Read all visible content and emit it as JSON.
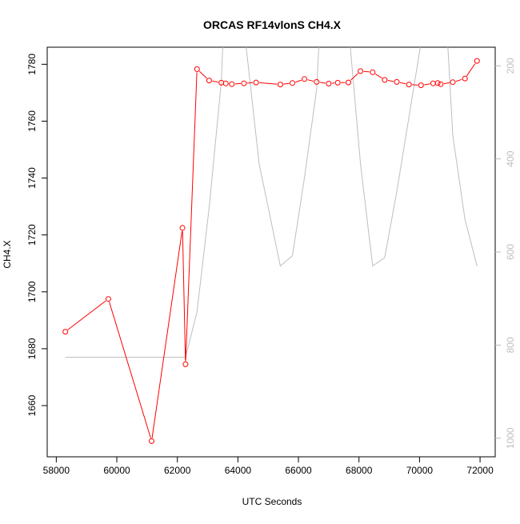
{
  "chart_data": {
    "type": "line",
    "title": "ORCAS RF14vlonS CH4.X",
    "xlabel": "UTC Seconds",
    "ylabel": "CH4.X",
    "xlim": [
      57700,
      72500
    ],
    "ylim": [
      1642,
      1786
    ],
    "y2lim": [
      1040,
      160
    ],
    "y2_reversed": true,
    "x_ticks": [
      58000,
      60000,
      62000,
      64000,
      66000,
      68000,
      70000,
      72000
    ],
    "y_ticks": [
      1660,
      1680,
      1700,
      1720,
      1740,
      1760,
      1780
    ],
    "y2_ticks": [
      200,
      400,
      600,
      800,
      1000
    ],
    "grid": false,
    "legend": "none",
    "series": [
      {
        "color": "#ff0000",
        "axis": "left",
        "points": [
          [
            58300,
            1686.0
          ],
          [
            59720,
            1697.5
          ],
          [
            61150,
            1647.5
          ],
          [
            62170,
            1722.5
          ],
          [
            62270,
            1674.5
          ],
          [
            62650,
            1778.3
          ],
          [
            63050,
            1774.3
          ],
          [
            63450,
            1773.5
          ],
          [
            63600,
            1773.3
          ],
          [
            63800,
            1773.0
          ],
          [
            64200,
            1773.3
          ],
          [
            64600,
            1773.6
          ],
          [
            65400,
            1772.9
          ],
          [
            65800,
            1773.4
          ],
          [
            66200,
            1774.8
          ],
          [
            66600,
            1773.8
          ],
          [
            67000,
            1773.2
          ],
          [
            67300,
            1773.5
          ],
          [
            67650,
            1773.6
          ],
          [
            68050,
            1777.6
          ],
          [
            68450,
            1777.2
          ],
          [
            68850,
            1774.5
          ],
          [
            69250,
            1773.8
          ],
          [
            69650,
            1772.9
          ],
          [
            70050,
            1772.6
          ],
          [
            70450,
            1773.3
          ],
          [
            70600,
            1773.4
          ],
          [
            70700,
            1773.0
          ],
          [
            71100,
            1773.7
          ],
          [
            71500,
            1775.0
          ],
          [
            71900,
            1781.2
          ]
        ]
      },
      {
        "color": "#bebebe",
        "axis": "right",
        "points": [
          [
            58300,
            826
          ],
          [
            62270,
            826
          ],
          [
            62650,
            728
          ],
          [
            63050,
            505
          ],
          [
            63450,
            235
          ],
          [
            63600,
            0
          ],
          [
            64000,
            0
          ],
          [
            64700,
            410
          ],
          [
            65400,
            630
          ],
          [
            65800,
            608
          ],
          [
            66200,
            440
          ],
          [
            66600,
            250
          ],
          [
            66800,
            0
          ],
          [
            67500,
            0
          ],
          [
            68050,
            410
          ],
          [
            68450,
            630
          ],
          [
            68850,
            612
          ],
          [
            69250,
            470
          ],
          [
            69650,
            310
          ],
          [
            70050,
            150
          ],
          [
            70200,
            0
          ],
          [
            70800,
            0
          ],
          [
            71100,
            350
          ],
          [
            71500,
            530
          ],
          [
            71900,
            630
          ]
        ]
      }
    ]
  }
}
